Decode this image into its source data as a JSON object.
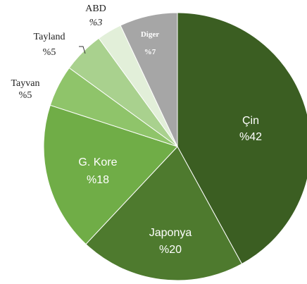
{
  "chart_data": {
    "type": "pie",
    "slices": [
      {
        "category": "Çin",
        "value": 42,
        "label": "%42",
        "color": "#3b5e22"
      },
      {
        "category": "Japonya",
        "value": 20,
        "label": "%20",
        "color": "#4e7a2e"
      },
      {
        "category": "G. Kore",
        "value": 18,
        "label": "%18",
        "color": "#70ad47"
      },
      {
        "category": "Tayvan",
        "value": 5,
        "label": "%5",
        "color": "#8fc46a"
      },
      {
        "category": "Tayland",
        "value": 5,
        "label": "%5",
        "color": "#a9d18e"
      },
      {
        "category": "ABD",
        "value": 3,
        "label": "%3",
        "color": "#e2efd9"
      },
      {
        "category": "Diger",
        "value": 7,
        "label": "%7",
        "color": "#a6a6a6"
      }
    ]
  }
}
